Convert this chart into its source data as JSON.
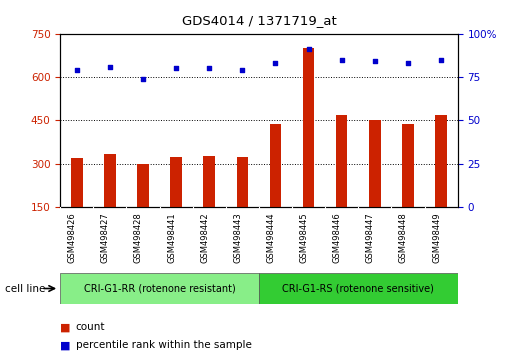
{
  "title": "GDS4014 / 1371719_at",
  "samples": [
    "GSM498426",
    "GSM498427",
    "GSM498428",
    "GSM498441",
    "GSM498442",
    "GSM498443",
    "GSM498444",
    "GSM498445",
    "GSM498446",
    "GSM498447",
    "GSM498448",
    "GSM498449"
  ],
  "counts": [
    320,
    335,
    300,
    323,
    328,
    323,
    437,
    700,
    468,
    450,
    437,
    468
  ],
  "percentile_ranks": [
    79,
    81,
    74,
    80,
    80,
    79,
    83,
    91,
    85,
    84,
    83,
    85
  ],
  "bar_color": "#cc2200",
  "dot_color": "#0000cc",
  "group1_label": "CRI-G1-RR (rotenone resistant)",
  "group2_label": "CRI-G1-RS (rotenone sensitive)",
  "group1_color": "#88ee88",
  "group2_color": "#33cc33",
  "cell_line_label": "cell line",
  "legend_count": "count",
  "legend_percentile": "percentile rank within the sample",
  "ylim_left": [
    150,
    750
  ],
  "ylim_right": [
    0,
    100
  ],
  "yticks_left": [
    150,
    300,
    450,
    600,
    750
  ],
  "yticks_right": [
    0,
    25,
    50,
    75,
    100
  ],
  "grid_values": [
    300,
    450,
    600
  ],
  "label_bg_color": "#d8d8d8",
  "plot_bg": "#ffffff",
  "fig_bg": "#ffffff"
}
